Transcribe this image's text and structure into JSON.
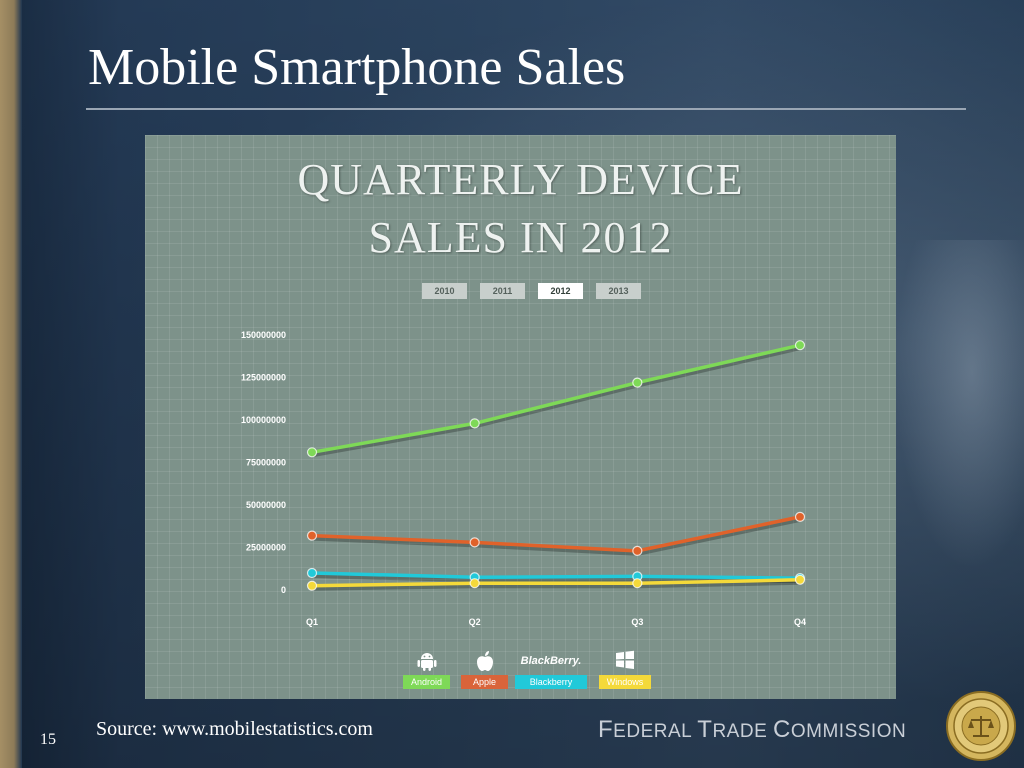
{
  "slide": {
    "title": "Mobile Smartphone Sales",
    "source": "Source: www.mobilestatistics.com",
    "page_number": "15",
    "footer": {
      "f": "F",
      "ederal": "EDERAL",
      "t": "T",
      "rade": "RADE",
      "c": "C",
      "ommission": "OMMISSION"
    }
  },
  "chart_panel": {
    "heading_line1": "QUARTERLY DEVICE",
    "heading_line2": "SALES IN 2012",
    "year_tabs": [
      "2010",
      "2011",
      "2012",
      "2013"
    ],
    "active_year": "2012"
  },
  "chart_data": {
    "type": "line",
    "title": "QUARTERLY DEVICE SALES IN 2012",
    "categories": [
      "Q1",
      "Q2",
      "Q3",
      "Q4"
    ],
    "ylim": [
      0,
      150000000
    ],
    "yticks": [
      "0",
      "25000000",
      "50000000",
      "75000000",
      "100000000",
      "125000000",
      "150000000"
    ],
    "grid": true,
    "legend_position": "bottom",
    "series": [
      {
        "name": "Android",
        "color": "#7ed957",
        "values": [
          81000000,
          98000000,
          122000000,
          144000000
        ]
      },
      {
        "name": "Apple",
        "color": "#e0622a",
        "values": [
          32000000,
          28000000,
          23000000,
          43000000
        ]
      },
      {
        "name": "Blackberry",
        "color": "#21c9d9",
        "values": [
          10000000,
          7500000,
          8000000,
          7000000
        ]
      },
      {
        "name": "Windows",
        "color": "#f4d93a",
        "values": [
          2500000,
          4000000,
          4000000,
          6000000
        ]
      }
    ]
  },
  "legend": {
    "items": [
      {
        "label": "Android",
        "icon": "android-icon",
        "color": "#7ed957"
      },
      {
        "label": "Apple",
        "icon": "apple-icon",
        "color": "#d9643a"
      },
      {
        "label": "Blackberry",
        "icon": "blackberry-icon",
        "icon_text": "BlackBerry.",
        "color": "#21c9d9"
      },
      {
        "label": "Windows",
        "icon": "windows-icon",
        "color": "#f4d93a"
      }
    ]
  }
}
